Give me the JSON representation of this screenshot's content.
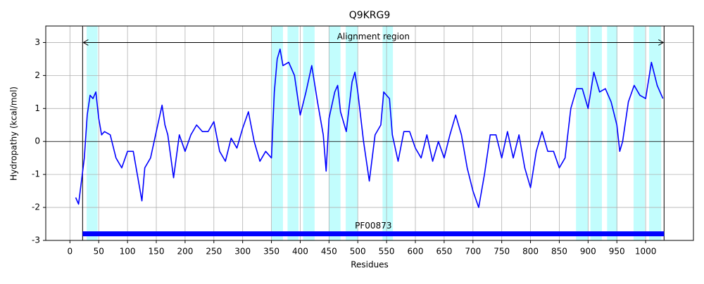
{
  "chart_data": {
    "type": "line",
    "title": "Q9KRG9",
    "xlabel": "Residues",
    "ylabel": "Hydropathy (kcal/mol)",
    "x": [
      10,
      15,
      20,
      25,
      30,
      35,
      40,
      45,
      50,
      55,
      60,
      70,
      80,
      90,
      100,
      110,
      120,
      125,
      130,
      140,
      150,
      160,
      165,
      170,
      180,
      190,
      200,
      210,
      220,
      230,
      240,
      250,
      260,
      270,
      280,
      290,
      300,
      310,
      320,
      330,
      340,
      350,
      355,
      360,
      365,
      370,
      380,
      390,
      400,
      410,
      420,
      430,
      440,
      445,
      450,
      460,
      465,
      470,
      480,
      490,
      495,
      500,
      510,
      520,
      530,
      540,
      545,
      555,
      560,
      570,
      580,
      590,
      600,
      610,
      620,
      630,
      640,
      650,
      660,
      670,
      680,
      690,
      700,
      710,
      720,
      730,
      740,
      750,
      760,
      770,
      780,
      790,
      800,
      810,
      820,
      830,
      840,
      850,
      860,
      870,
      880,
      890,
      900,
      910,
      920,
      930,
      940,
      950,
      955,
      960,
      970,
      980,
      990,
      1000,
      1010,
      1020,
      1030
    ],
    "values": [
      -1.7,
      -1.9,
      -1.2,
      -0.5,
      0.8,
      1.4,
      1.3,
      1.5,
      0.7,
      0.2,
      0.3,
      0.2,
      -0.5,
      -0.8,
      -0.3,
      -0.3,
      -1.3,
      -1.8,
      -0.8,
      -0.5,
      0.3,
      1.1,
      0.5,
      0.2,
      -1.1,
      0.2,
      -0.3,
      0.2,
      0.5,
      0.3,
      0.3,
      0.6,
      -0.3,
      -0.6,
      0.1,
      -0.2,
      0.4,
      0.9,
      0,
      -0.6,
      -0.3,
      -0.5,
      1.5,
      2.5,
      2.8,
      2.3,
      2.4,
      2.0,
      0.8,
      1.5,
      2.3,
      1.2,
      0.2,
      -0.9,
      0.7,
      1.5,
      1.7,
      0.9,
      0.3,
      1.8,
      2.1,
      1.5,
      0,
      -1.2,
      0.2,
      0.5,
      1.5,
      1.3,
      0.2,
      -0.6,
      0.3,
      0.3,
      -0.2,
      -0.5,
      0.2,
      -0.6,
      0,
      -0.5,
      0.2,
      0.8,
      0.2,
      -0.8,
      -1.5,
      -2.0,
      -1.0,
      0.2,
      0.2,
      -0.5,
      0.3,
      -0.5,
      0.2,
      -0.8,
      -1.4,
      -0.3,
      0.3,
      -0.3,
      -0.3,
      -0.8,
      -0.5,
      1.0,
      1.6,
      1.6,
      1.0,
      2.1,
      1.5,
      1.6,
      1.2,
      0.5,
      -0.3,
      0,
      1.2,
      1.7,
      1.4,
      1.3,
      2.4,
      1.7,
      1.3
    ],
    "color": "#0000ff",
    "regions": [
      [
        29,
        48
      ],
      [
        350,
        370
      ],
      [
        378,
        397
      ],
      [
        405,
        425
      ],
      [
        450,
        470
      ],
      [
        479,
        500
      ],
      [
        543,
        561
      ],
      [
        879,
        900
      ],
      [
        904,
        924
      ],
      [
        933,
        951
      ],
      [
        979,
        999
      ],
      [
        1006,
        1027
      ]
    ],
    "region_color": "#c2fdfd",
    "vlines": [
      22,
      1032
    ],
    "hline": 0,
    "annotation": {
      "text": "Alignment region",
      "start": 22,
      "end": 1032,
      "y": 3
    },
    "domain": {
      "label": "PF00873",
      "start": 22,
      "end": 1032,
      "y": -2.8,
      "color": "#0000ff"
    },
    "xlim": [
      -42,
      1083
    ],
    "ylim": [
      -3,
      3.5
    ],
    "xticks": [
      0,
      50,
      100,
      150,
      200,
      250,
      300,
      350,
      400,
      450,
      500,
      550,
      600,
      650,
      700,
      750,
      800,
      850,
      900,
      950,
      1000
    ],
    "yticks": [
      -3,
      -2,
      -1,
      0,
      1,
      2,
      3
    ],
    "grid": true
  }
}
